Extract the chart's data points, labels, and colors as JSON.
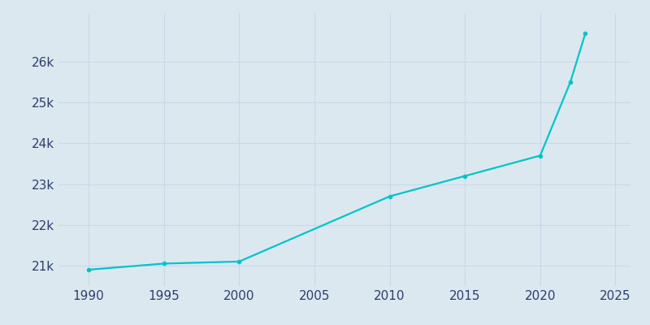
{
  "years": [
    1990,
    1995,
    2000,
    2010,
    2015,
    2020,
    2022,
    2023
  ],
  "population": [
    20900,
    21050,
    21100,
    22700,
    23200,
    23700,
    25500,
    26700
  ],
  "line_color": "#00c5c8",
  "marker": "o",
  "marker_size": 3,
  "line_width": 1.6,
  "background_color": "#dce8f0",
  "plot_bg_color": "#dce8f0",
  "grid_color": "#c8d8e8",
  "tick_color": "#2d3e6e",
  "xlim": [
    1988,
    2026
  ],
  "ylim": [
    20500,
    27200
  ],
  "xticks": [
    1990,
    1995,
    2000,
    2005,
    2010,
    2015,
    2020,
    2025
  ],
  "yticks": [
    21000,
    22000,
    23000,
    24000,
    25000,
    26000
  ],
  "ytick_labels": [
    "21k",
    "22k",
    "23k",
    "24k",
    "25k",
    "26k"
  ],
  "tick_fontsize": 11
}
